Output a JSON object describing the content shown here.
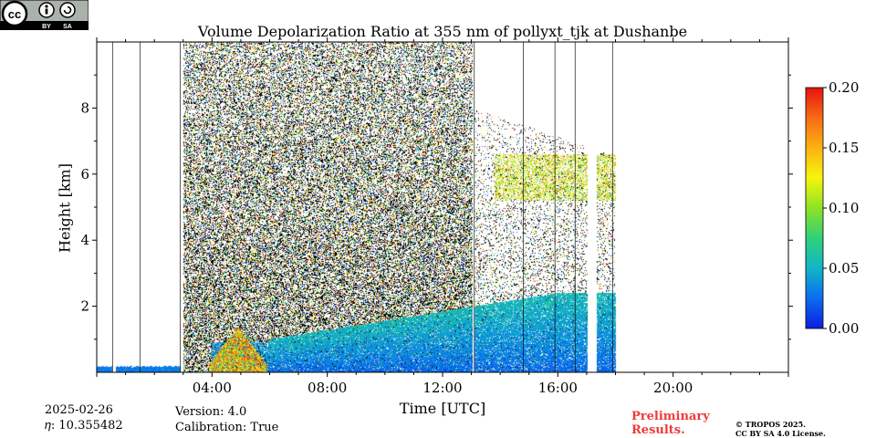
{
  "chart_data": {
    "type": "heatmap",
    "title": "Volume Depolarization Ratio at 355 nm of pollyxt_tjk at Dushanbe",
    "xlabel": "Time [UTC]",
    "ylabel": "Height [km]",
    "x_range_hours": [
      0,
      24
    ],
    "y_range_km": [
      0,
      10
    ],
    "x_ticks": [
      {
        "hour": 4,
        "label": "04:00"
      },
      {
        "hour": 8,
        "label": "08:00"
      },
      {
        "hour": 12,
        "label": "12:00"
      },
      {
        "hour": 16,
        "label": "16:00"
      },
      {
        "hour": 20,
        "label": "20:00"
      }
    ],
    "y_ticks": [
      {
        "km": 2,
        "label": "2"
      },
      {
        "km": 4,
        "label": "4"
      },
      {
        "km": 6,
        "label": "6"
      },
      {
        "km": 8,
        "label": "8"
      }
    ],
    "colorbar": {
      "min": 0.0,
      "max": 0.2,
      "ticks": [
        "0.00",
        "0.05",
        "0.10",
        "0.15",
        "0.20"
      ],
      "colormap": [
        "#0b1ee0",
        "#0a6cf0",
        "#12b5c8",
        "#2fd07a",
        "#8de323",
        "#f5f50c",
        "#fbb212",
        "#f76b15",
        "#e8120f"
      ]
    },
    "grid": false,
    "data_extent_hours": [
      0.0,
      18.0
    ],
    "features": [
      {
        "name": "low-level aerosol layer",
        "x_hours": [
          6.0,
          18.0
        ],
        "y_km": [
          0.0,
          2.5
        ],
        "value_approx": 0.02
      },
      {
        "name": "dust plume near surface",
        "x_hours": [
          3.9,
          5.9
        ],
        "y_km": [
          0.0,
          1.4
        ],
        "value_approx": 0.15
      },
      {
        "name": "cloud layer",
        "x_hours": [
          13.8,
          18.0
        ],
        "y_km": [
          5.2,
          6.6
        ],
        "value_approx": 0.12
      }
    ]
  },
  "footer": {
    "date": "2025-02-26",
    "eta": "𝜂: 10.355482",
    "version": "Version: 4.0",
    "calibration": "Calibration: True",
    "preliminary_line1": "Preliminary",
    "preliminary_line2": "Results.",
    "copyright_line1": "© TROPOS 2025.",
    "copyright_line2": "CC BY SA 4.0 License.",
    "license_badge": {
      "cc": "cc",
      "by": "BY",
      "sa": "SA",
      "icon_name": "cc-by-sa-icon"
    }
  },
  "colors": {
    "preliminary": "#ee3a3a"
  }
}
